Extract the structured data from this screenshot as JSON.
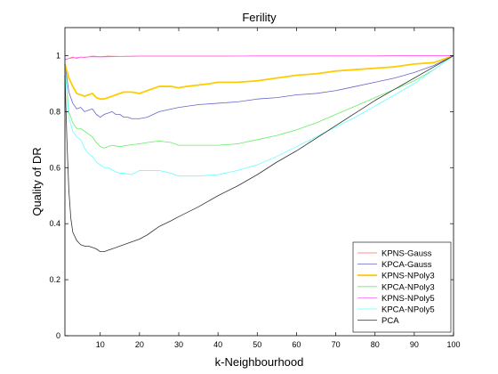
{
  "chart_data": {
    "type": "line",
    "title": "Ferility",
    "xlabel": "k-Neighbourhood",
    "ylabel": "Quality of DR",
    "xlim": [
      1,
      100
    ],
    "ylim": [
      0,
      1.1
    ],
    "xticks": [
      10,
      20,
      30,
      40,
      50,
      60,
      70,
      80,
      90,
      100
    ],
    "yticks": [
      0,
      0.2,
      0.4,
      0.6,
      0.8,
      1
    ],
    "ytick_labels": [
      "0",
      "0.2",
      "0.4",
      "0.6",
      "0.8",
      "1"
    ],
    "grid": false,
    "legend_position": "bottom-right",
    "series": [
      {
        "name": "KPNS-Gauss",
        "color": "#ff6666",
        "width": 0.8,
        "points": [
          [
            1,
            0.985
          ],
          [
            2,
            0.99
          ],
          [
            3,
            0.995
          ],
          [
            4,
            0.99
          ],
          [
            5,
            0.995
          ],
          [
            6,
            0.993
          ],
          [
            8,
            0.998
          ],
          [
            10,
            0.996
          ],
          [
            12,
            0.998
          ],
          [
            15,
            0.997
          ],
          [
            20,
            0.998
          ],
          [
            30,
            0.998
          ],
          [
            40,
            0.998
          ],
          [
            50,
            0.999
          ],
          [
            60,
            0.999
          ],
          [
            70,
            0.999
          ],
          [
            80,
            0.999
          ],
          [
            90,
            1.0
          ],
          [
            100,
            1.0
          ]
        ]
      },
      {
        "name": "KPCA-Gauss",
        "color": "#6666cc",
        "width": 0.8,
        "points": [
          [
            1,
            0.97
          ],
          [
            2,
            0.87
          ],
          [
            3,
            0.83
          ],
          [
            4,
            0.81
          ],
          [
            5,
            0.815
          ],
          [
            6,
            0.8
          ],
          [
            7,
            0.805
          ],
          [
            8,
            0.81
          ],
          [
            9,
            0.79
          ],
          [
            10,
            0.78
          ],
          [
            11,
            0.79
          ],
          [
            12,
            0.795
          ],
          [
            13,
            0.8
          ],
          [
            14,
            0.79
          ],
          [
            15,
            0.79
          ],
          [
            16,
            0.78
          ],
          [
            17,
            0.78
          ],
          [
            18,
            0.775
          ],
          [
            20,
            0.775
          ],
          [
            22,
            0.78
          ],
          [
            25,
            0.8
          ],
          [
            30,
            0.815
          ],
          [
            35,
            0.825
          ],
          [
            40,
            0.83
          ],
          [
            45,
            0.835
          ],
          [
            50,
            0.845
          ],
          [
            55,
            0.85
          ],
          [
            60,
            0.86
          ],
          [
            65,
            0.865
          ],
          [
            70,
            0.875
          ],
          [
            75,
            0.89
          ],
          [
            80,
            0.905
          ],
          [
            85,
            0.92
          ],
          [
            90,
            0.94
          ],
          [
            95,
            0.965
          ],
          [
            100,
            1.0
          ]
        ]
      },
      {
        "name": "KPNS-NPoly3",
        "color": "#ffcc00",
        "width": 1.8,
        "points": [
          [
            1,
            0.97
          ],
          [
            2,
            0.92
          ],
          [
            3,
            0.89
          ],
          [
            4,
            0.865
          ],
          [
            5,
            0.86
          ],
          [
            6,
            0.855
          ],
          [
            7,
            0.86
          ],
          [
            8,
            0.865
          ],
          [
            9,
            0.85
          ],
          [
            10,
            0.845
          ],
          [
            11,
            0.845
          ],
          [
            12,
            0.85
          ],
          [
            13,
            0.855
          ],
          [
            14,
            0.86
          ],
          [
            16,
            0.87
          ],
          [
            18,
            0.87
          ],
          [
            20,
            0.865
          ],
          [
            22,
            0.875
          ],
          [
            25,
            0.89
          ],
          [
            28,
            0.89
          ],
          [
            30,
            0.885
          ],
          [
            32,
            0.89
          ],
          [
            35,
            0.895
          ],
          [
            38,
            0.9
          ],
          [
            40,
            0.905
          ],
          [
            45,
            0.905
          ],
          [
            50,
            0.91
          ],
          [
            55,
            0.92
          ],
          [
            60,
            0.93
          ],
          [
            65,
            0.935
          ],
          [
            70,
            0.945
          ],
          [
            75,
            0.95
          ],
          [
            80,
            0.955
          ],
          [
            85,
            0.96
          ],
          [
            90,
            0.97
          ],
          [
            95,
            0.975
          ],
          [
            100,
            1.0
          ]
        ]
      },
      {
        "name": "KPCA-NPoly3",
        "color": "#66ee66",
        "width": 0.8,
        "points": [
          [
            1,
            0.96
          ],
          [
            2,
            0.8
          ],
          [
            3,
            0.76
          ],
          [
            4,
            0.74
          ],
          [
            5,
            0.74
          ],
          [
            6,
            0.73
          ],
          [
            7,
            0.72
          ],
          [
            8,
            0.71
          ],
          [
            9,
            0.69
          ],
          [
            10,
            0.675
          ],
          [
            11,
            0.67
          ],
          [
            12,
            0.675
          ],
          [
            13,
            0.68
          ],
          [
            15,
            0.675
          ],
          [
            17,
            0.68
          ],
          [
            20,
            0.685
          ],
          [
            22,
            0.69
          ],
          [
            25,
            0.695
          ],
          [
            28,
            0.69
          ],
          [
            30,
            0.68
          ],
          [
            35,
            0.68
          ],
          [
            40,
            0.68
          ],
          [
            45,
            0.685
          ],
          [
            50,
            0.7
          ],
          [
            55,
            0.715
          ],
          [
            60,
            0.735
          ],
          [
            65,
            0.76
          ],
          [
            70,
            0.79
          ],
          [
            75,
            0.82
          ],
          [
            80,
            0.85
          ],
          [
            85,
            0.88
          ],
          [
            90,
            0.91
          ],
          [
            95,
            0.95
          ],
          [
            100,
            1.0
          ]
        ]
      },
      {
        "name": "KPNS-NPoly5",
        "color": "#ff66ff",
        "width": 0.8,
        "points": [
          [
            1,
            0.985
          ],
          [
            2,
            0.99
          ],
          [
            3,
            0.992
          ],
          [
            5,
            0.994
          ],
          [
            8,
            0.996
          ],
          [
            10,
            0.995
          ],
          [
            15,
            0.997
          ],
          [
            20,
            0.998
          ],
          [
            30,
            0.998
          ],
          [
            40,
            0.998
          ],
          [
            50,
            0.999
          ],
          [
            60,
            0.999
          ],
          [
            70,
            0.999
          ],
          [
            80,
            0.999
          ],
          [
            90,
            1.0
          ],
          [
            100,
            1.0
          ]
        ]
      },
      {
        "name": "KPCA-NPoly5",
        "color": "#66ffff",
        "width": 0.8,
        "points": [
          [
            1,
            0.955
          ],
          [
            2,
            0.78
          ],
          [
            3,
            0.73
          ],
          [
            4,
            0.71
          ],
          [
            5,
            0.7
          ],
          [
            6,
            0.67
          ],
          [
            7,
            0.65
          ],
          [
            8,
            0.64
          ],
          [
            9,
            0.62
          ],
          [
            10,
            0.61
          ],
          [
            11,
            0.6
          ],
          [
            12,
            0.6
          ],
          [
            14,
            0.585
          ],
          [
            15,
            0.58
          ],
          [
            16,
            0.58
          ],
          [
            18,
            0.575
          ],
          [
            20,
            0.59
          ],
          [
            22,
            0.59
          ],
          [
            25,
            0.59
          ],
          [
            28,
            0.58
          ],
          [
            30,
            0.57
          ],
          [
            35,
            0.57
          ],
          [
            40,
            0.575
          ],
          [
            45,
            0.59
          ],
          [
            50,
            0.61
          ],
          [
            55,
            0.64
          ],
          [
            60,
            0.675
          ],
          [
            65,
            0.71
          ],
          [
            70,
            0.745
          ],
          [
            75,
            0.78
          ],
          [
            80,
            0.82
          ],
          [
            85,
            0.86
          ],
          [
            90,
            0.9
          ],
          [
            95,
            0.95
          ],
          [
            100,
            1.0
          ]
        ]
      },
      {
        "name": "PCA",
        "color": "#333333",
        "width": 0.8,
        "points": [
          [
            1,
            0.93
          ],
          [
            1.5,
            0.7
          ],
          [
            2,
            0.52
          ],
          [
            2.5,
            0.42
          ],
          [
            3,
            0.37
          ],
          [
            4,
            0.34
          ],
          [
            5,
            0.325
          ],
          [
            6,
            0.32
          ],
          [
            7,
            0.32
          ],
          [
            8,
            0.315
          ],
          [
            9,
            0.31
          ],
          [
            10,
            0.3
          ],
          [
            11,
            0.3
          ],
          [
            12,
            0.305
          ],
          [
            13,
            0.31
          ],
          [
            15,
            0.32
          ],
          [
            18,
            0.335
          ],
          [
            20,
            0.345
          ],
          [
            22,
            0.36
          ],
          [
            25,
            0.39
          ],
          [
            28,
            0.41
          ],
          [
            30,
            0.425
          ],
          [
            35,
            0.46
          ],
          [
            40,
            0.5
          ],
          [
            45,
            0.535
          ],
          [
            50,
            0.575
          ],
          [
            55,
            0.62
          ],
          [
            60,
            0.66
          ],
          [
            65,
            0.705
          ],
          [
            70,
            0.75
          ],
          [
            75,
            0.795
          ],
          [
            80,
            0.84
          ],
          [
            85,
            0.88
          ],
          [
            90,
            0.92
          ],
          [
            95,
            0.96
          ],
          [
            100,
            1.0
          ]
        ]
      }
    ]
  }
}
